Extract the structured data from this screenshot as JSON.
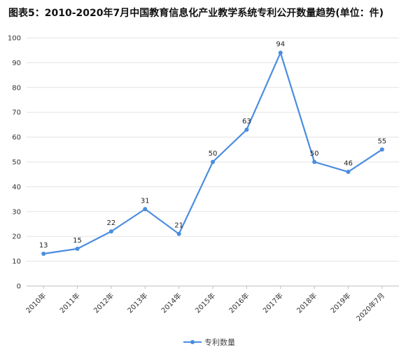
{
  "chart_data": {
    "type": "line",
    "title": "图表5：2010-2020年7月中国教育信息化产业教学系统专利公开数量趋势(单位：件)",
    "categories": [
      "2010年",
      "2011年",
      "2012年",
      "2013年",
      "2014年",
      "2015年",
      "2016年",
      "2017年",
      "2018年",
      "2019年",
      "2020年7月"
    ],
    "series": [
      {
        "name": "专利数量",
        "values": [
          13,
          15,
          22,
          31,
          21,
          50,
          63,
          94,
          50,
          46,
          55
        ],
        "color": "#4a8de0"
      }
    ],
    "ylim": [
      0,
      100
    ],
    "yticks": [
      0,
      10,
      20,
      30,
      40,
      50,
      60,
      70,
      80,
      90,
      100
    ],
    "grid": true,
    "legend_position": "bottom"
  }
}
